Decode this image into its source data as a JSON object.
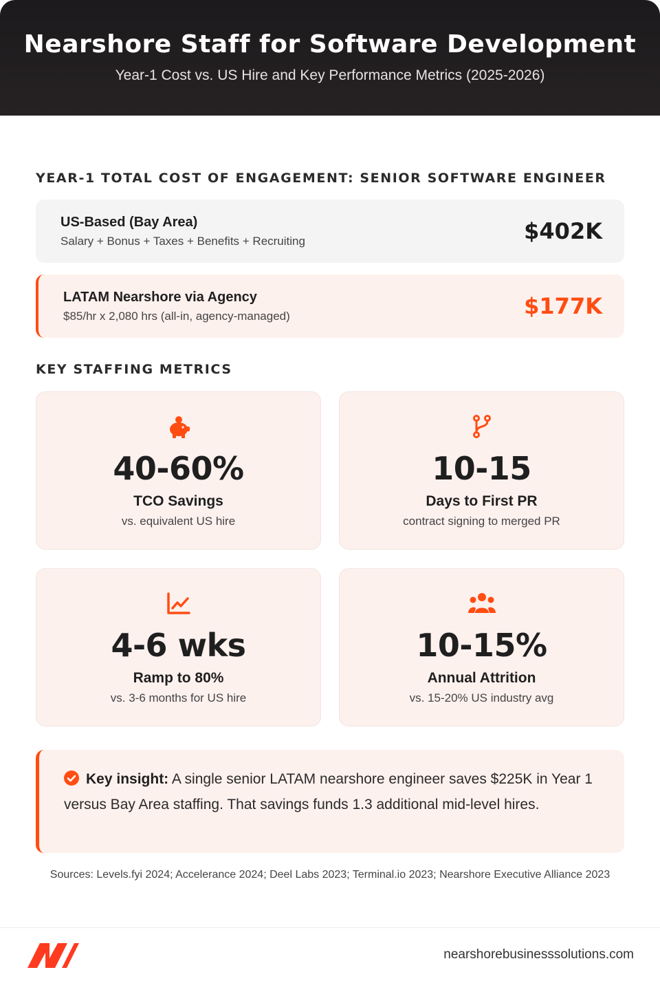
{
  "header": {
    "title": "Nearshore Staff for Software Development",
    "subtitle": "Year-1 Cost vs. US Hire and Key Performance Metrics (2025-2026)"
  },
  "cost_section": {
    "title": "YEAR-1 TOTAL COST OF ENGAGEMENT: SENIOR SOFTWARE ENGINEER",
    "rows": [
      {
        "label": "US-Based (Bay Area)",
        "desc": "Salary + Bonus + Taxes + Benefits + Recruiting",
        "amount": "$402K"
      },
      {
        "label": "LATAM Nearshore via Agency",
        "desc": "$85/hr x 2,080 hrs (all-in, agency-managed)",
        "amount": "$177K"
      }
    ]
  },
  "metrics_section": {
    "title": "KEY STAFFING METRICS",
    "cards": [
      {
        "icon": "piggy-bank-icon",
        "value": "40-60%",
        "label": "TCO Savings",
        "desc": "vs. equivalent US hire"
      },
      {
        "icon": "code-branch-icon",
        "value": "10-15",
        "label": "Days to First PR",
        "desc": "contract signing to merged PR"
      },
      {
        "icon": "chart-line-icon",
        "value": "4-6 wks",
        "label": "Ramp to 80%",
        "desc": "vs. 3-6 months for US hire"
      },
      {
        "icon": "users-icon",
        "value": "10-15%",
        "label": "Annual Attrition",
        "desc": "vs. 15-20% US industry avg"
      }
    ]
  },
  "insight": {
    "icon": "check-circle-icon",
    "lead": "Key insight:",
    "text": " A single senior LATAM nearshore engineer saves $225K in Year 1 versus Bay Area staffing. That savings funds 1.3 additional mid-level hires."
  },
  "sources": "Sources: Levels.fyi 2024; Accelerance 2024; Deel Labs 2023; Terminal.io 2023; Nearshore Executive Alliance 2023",
  "footer": {
    "site": "nearshorebusinesssolutions.com"
  },
  "colors": {
    "accent": "#ff4d12",
    "header_bg": "#1f1c1e",
    "card_bg": "#fdf1ee"
  }
}
